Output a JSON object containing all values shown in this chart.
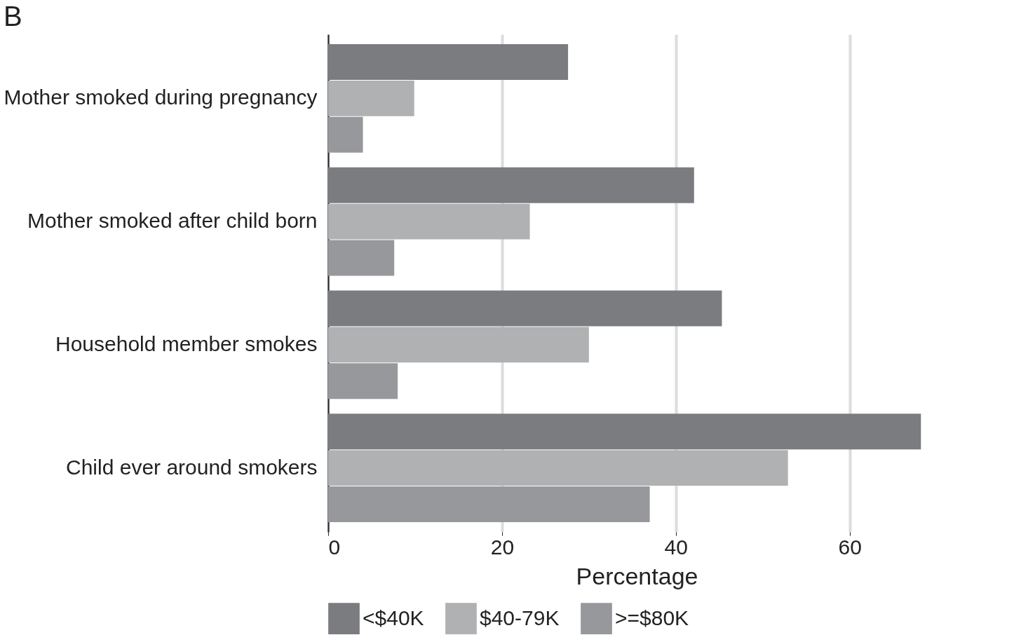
{
  "chart_data": {
    "type": "bar",
    "orientation": "horizontal",
    "title": "B",
    "xlabel": "Percentage",
    "categories": [
      "Mother smoked during pregnancy",
      "Mother smoked after child born",
      "Household member smokes",
      "Child ever around smokers"
    ],
    "series": [
      {
        "name": "<$40K",
        "color": "#7b7c80",
        "values": [
          27.6,
          42.1,
          45.3,
          68.2
        ]
      },
      {
        "name": "$40-79K",
        "color": "#b0b1b3",
        "values": [
          9.9,
          23.2,
          30.0,
          52.9
        ]
      },
      {
        "name": ">=$80K",
        "color": "#97989b",
        "values": [
          4.0,
          7.6,
          8.0,
          37.0
        ]
      }
    ],
    "xlim": [
      0,
      71
    ],
    "xticks": [
      0,
      20,
      40,
      60
    ],
    "grid": "x",
    "legend": "bottom"
  }
}
